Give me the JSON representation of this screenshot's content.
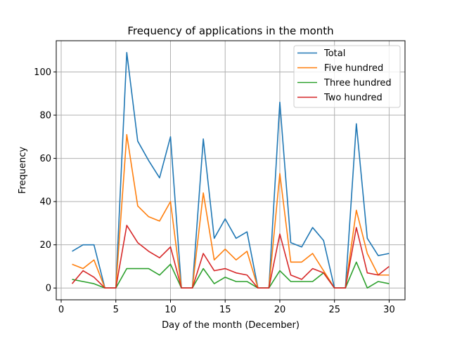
{
  "chart_data": {
    "type": "line",
    "title": "Frequency of applications in the month",
    "xlabel": "Day of the month (December)",
    "ylabel": "Frequency",
    "x": [
      1,
      2,
      3,
      4,
      5,
      6,
      7,
      8,
      9,
      10,
      11,
      12,
      13,
      14,
      15,
      16,
      17,
      18,
      19,
      20,
      21,
      22,
      23,
      24,
      25,
      26,
      27,
      28,
      29,
      30
    ],
    "xlim": [
      -0.45,
      31.45
    ],
    "ylim": [
      -5.45,
      114.45
    ],
    "xticks": [
      0,
      5,
      10,
      15,
      20,
      25,
      30
    ],
    "yticks": [
      0,
      20,
      40,
      60,
      80,
      100
    ],
    "grid": true,
    "legend_position": "top-right",
    "series": [
      {
        "name": "Total",
        "color": "#1f77b4",
        "values": [
          17,
          20,
          20,
          0,
          0,
          109,
          68,
          59,
          51,
          70,
          0,
          0,
          69,
          23,
          32,
          23,
          26,
          0,
          0,
          86,
          21,
          19,
          28,
          22,
          0,
          0,
          76,
          23,
          15,
          16
        ]
      },
      {
        "name": "Five hundred",
        "color": "#ff7f0e",
        "values": [
          11,
          9,
          13,
          0,
          0,
          71,
          38,
          33,
          31,
          40,
          0,
          0,
          44,
          13,
          18,
          13,
          17,
          0,
          0,
          53,
          12,
          12,
          16,
          8,
          0,
          0,
          36,
          16,
          6,
          6
        ]
      },
      {
        "name": "Three hundred",
        "color": "#2ca02c",
        "values": [
          4,
          3,
          2,
          0,
          0,
          9,
          9,
          9,
          6,
          11,
          0,
          0,
          9,
          2,
          5,
          3,
          3,
          0,
          0,
          8,
          3,
          3,
          3,
          7,
          0,
          0,
          12,
          0,
          3,
          2
        ]
      },
      {
        "name": "Two hundred",
        "color": "#d62728",
        "values": [
          2,
          8,
          5,
          0,
          0,
          29,
          21,
          17,
          14,
          19,
          0,
          0,
          16,
          8,
          9,
          7,
          6,
          0,
          0,
          25,
          6,
          4,
          9,
          7,
          0,
          0,
          28,
          7,
          6,
          10
        ]
      }
    ]
  }
}
